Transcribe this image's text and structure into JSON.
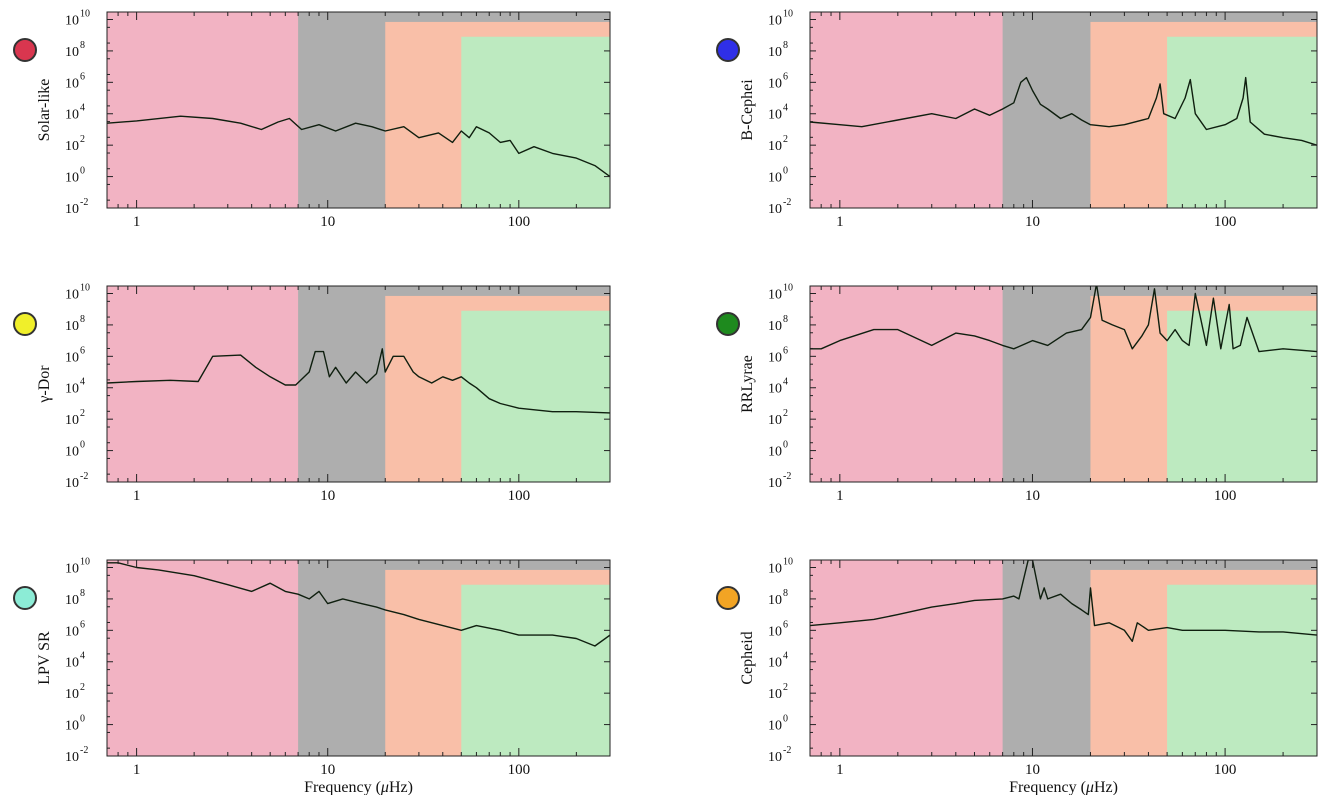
{
  "figure": {
    "xlabel_prefix": "Frequency (",
    "xlabel_greek": "μ",
    "xlabel_suffix": "Hz)",
    "x_ticks": [
      "1",
      "10",
      "100"
    ],
    "y_ticks": [
      "10",
      "10",
      "10",
      "10",
      "10",
      "10",
      "10"
    ],
    "y_tick_exponents": [
      "-2",
      "0",
      "2",
      "4",
      "6",
      "8",
      "10"
    ],
    "band_colors": {
      "background": "#f2b3c3",
      "gray": "#aeaeae",
      "orange": "#f9bfa8",
      "green": "#bdeac0"
    }
  },
  "chart_data": [
    {
      "type": "line",
      "panel": "Solar-like",
      "ylabel": "Solar-like",
      "marker_color": "#d9364f",
      "xscale": "log",
      "yscale": "log",
      "xlim": [
        0.7,
        300
      ],
      "ylim": [
        0.01,
        30000000000
      ],
      "bands": {
        "gray": [
          7,
          300,
          100000000000
        ],
        "orange": [
          20,
          300,
          7000000000
        ],
        "green": [
          50,
          300,
          800000000
        ]
      },
      "x": [
        0.7,
        1,
        1.7,
        2.5,
        3.5,
        4.5,
        5.5,
        6.3,
        7.3,
        9,
        11,
        14,
        17,
        20,
        25,
        30,
        38,
        45,
        50,
        55,
        60,
        70,
        80,
        90,
        100,
        120,
        150,
        200,
        250,
        300
      ],
      "y": [
        2500,
        3500,
        7000,
        5000,
        2500,
        1000,
        3000,
        5000,
        1000,
        2000,
        800,
        2500,
        1500,
        800,
        1500,
        300,
        600,
        150,
        800,
        300,
        1500,
        600,
        150,
        200,
        30,
        80,
        30,
        15,
        5,
        1
      ]
    },
    {
      "type": "line",
      "panel": "B-Cephei",
      "ylabel": "B-Cephei",
      "marker_color": "#2f2fe8",
      "xscale": "log",
      "yscale": "log",
      "xlim": [
        0.7,
        300
      ],
      "ylim": [
        0.01,
        30000000000
      ],
      "bands": {
        "gray": [
          7,
          300,
          100000000000
        ],
        "orange": [
          20,
          300,
          7000000000
        ],
        "green": [
          50,
          300,
          800000000
        ]
      },
      "x": [
        0.7,
        1,
        1.3,
        2,
        3,
        4,
        5,
        6,
        7,
        8,
        8.7,
        9.3,
        10,
        11,
        12,
        14,
        16,
        18,
        20,
        25,
        30,
        40,
        44,
        46,
        48,
        55,
        62,
        66,
        70,
        80,
        100,
        115,
        124,
        128,
        135,
        160,
        200,
        250,
        300
      ],
      "y": [
        3000,
        2000,
        1500,
        4000,
        10000,
        5000,
        20000,
        8000,
        20000,
        50000,
        1000000,
        2000000,
        300000,
        40000,
        20000,
        5000,
        10000,
        4000,
        2000,
        1500,
        2000,
        5000,
        100000,
        800000,
        10000,
        5000,
        100000,
        1500000,
        10000,
        1000,
        2000,
        5000,
        100000,
        2000000,
        3000,
        500,
        300,
        200,
        100
      ]
    },
    {
      "type": "line",
      "panel": "γ-Dor",
      "ylabel": "γ-Dor",
      "marker_color": "#f0ef2a",
      "xscale": "log",
      "yscale": "log",
      "xlim": [
        0.7,
        300
      ],
      "ylim": [
        0.01,
        30000000000
      ],
      "bands": {
        "gray": [
          7,
          300,
          100000000000
        ],
        "orange": [
          20,
          300,
          7000000000
        ],
        "green": [
          50,
          300,
          800000000
        ]
      },
      "x": [
        0.7,
        1,
        1.5,
        2.1,
        2.5,
        3.5,
        4.2,
        5,
        6,
        6.8,
        8,
        8.6,
        9.5,
        10.2,
        11,
        12.5,
        14,
        16,
        18,
        19.3,
        20,
        22,
        25,
        28,
        30,
        35,
        40,
        45,
        50,
        55,
        60,
        70,
        80,
        100,
        150,
        200,
        300
      ],
      "y": [
        20000,
        25000,
        30000,
        25000,
        1000000,
        1200000,
        200000,
        50000,
        15000,
        15000,
        100000,
        2000000,
        2000000,
        50000,
        200000,
        20000,
        100000,
        20000,
        80000,
        3000000,
        100000,
        1000000,
        1000000,
        100000,
        50000,
        20000,
        50000,
        30000,
        50000,
        20000,
        10000,
        2000,
        1000,
        500,
        300,
        300,
        250
      ]
    },
    {
      "type": "line",
      "panel": "RRLyrae",
      "ylabel": "RRLyrae",
      "marker_color": "#1e8a1e",
      "xscale": "log",
      "yscale": "log",
      "xlim": [
        0.7,
        300
      ],
      "ylim": [
        0.01,
        30000000000
      ],
      "bands": {
        "gray": [
          7,
          300,
          100000000000
        ],
        "orange": [
          20,
          300,
          7000000000
        ],
        "green": [
          50,
          300,
          800000000
        ]
      },
      "x": [
        0.7,
        0.8,
        1,
        1.5,
        2,
        3,
        4,
        5,
        6,
        7,
        8,
        10,
        12,
        15,
        18,
        20,
        21.5,
        23,
        26,
        30,
        33,
        37,
        40,
        43,
        46,
        50,
        55,
        60,
        65,
        70,
        80,
        87,
        95,
        105,
        110,
        120,
        130,
        150,
        200,
        300
      ],
      "y": [
        3000000,
        3000000,
        10000000,
        50000000,
        50000000,
        5000000,
        30000000,
        20000000,
        10000000,
        5000000,
        3000000,
        10000000,
        5000000,
        30000000,
        50000000,
        300000000,
        40000000000,
        200000000,
        100000000,
        50000000,
        3000000,
        20000000,
        100000000,
        20000000000,
        30000000,
        10000000,
        50000000,
        10000000,
        5000000,
        10000000000,
        5000000,
        5000000000,
        3000000,
        2000000000,
        3000000,
        5000000,
        300000000,
        2000000,
        3000000,
        2000000
      ]
    },
    {
      "type": "line",
      "panel": "LPV SR",
      "ylabel": "LPV SR",
      "marker_color": "#8cecd6",
      "xscale": "log",
      "yscale": "log",
      "xlim": [
        0.7,
        300
      ],
      "ylim": [
        0.01,
        30000000000
      ],
      "bands": {
        "gray": [
          7,
          300,
          100000000000
        ],
        "orange": [
          20,
          300,
          7000000000
        ],
        "green": [
          50,
          300,
          800000000
        ]
      },
      "x": [
        0.7,
        0.8,
        1,
        1.3,
        2,
        3,
        4,
        5,
        6,
        7,
        8,
        9,
        10,
        12,
        15,
        18,
        20,
        25,
        30,
        40,
        50,
        60,
        80,
        100,
        150,
        200,
        250,
        300
      ],
      "y": [
        20000000000,
        20000000000,
        10000000000,
        7000000000,
        3000000000,
        800000000,
        300000000,
        1000000000,
        300000000,
        200000000,
        100000000,
        300000000,
        50000000,
        100000000,
        50000000,
        30000000,
        20000000,
        10000000,
        5000000,
        2000000,
        1000000,
        2000000,
        1000000,
        500000,
        500000,
        300000,
        100000,
        500000
      ]
    },
    {
      "type": "line",
      "panel": "Cepheid",
      "ylabel": "Cepheid",
      "marker_color": "#f2a424",
      "xscale": "log",
      "yscale": "log",
      "xlim": [
        0.7,
        300
      ],
      "ylim": [
        0.01,
        30000000000
      ],
      "bands": {
        "gray": [
          7,
          300,
          100000000000
        ],
        "orange": [
          20,
          300,
          7000000000
        ],
        "green": [
          50,
          300,
          800000000
        ]
      },
      "x": [
        0.7,
        1,
        1.5,
        2,
        3,
        4,
        5,
        7,
        8,
        8.5,
        9.5,
        10,
        11,
        11.5,
        12,
        14,
        16,
        18,
        19.5,
        20,
        21,
        25,
        30,
        33,
        35,
        40,
        50,
        60,
        80,
        100,
        150,
        200,
        300
      ],
      "y": [
        2000000,
        3000000,
        5000000,
        10000000,
        30000000,
        50000000,
        80000000,
        100000000,
        150000000,
        100000000,
        30000000000,
        30000000000,
        100000000,
        500000000,
        100000000,
        200000000,
        50000000,
        20000000,
        10000000,
        500000000,
        2000000,
        3000000,
        1000000,
        200000,
        3000000,
        1000000,
        1500000,
        1000000,
        1000000,
        1000000,
        800000,
        800000,
        500000
      ]
    }
  ]
}
